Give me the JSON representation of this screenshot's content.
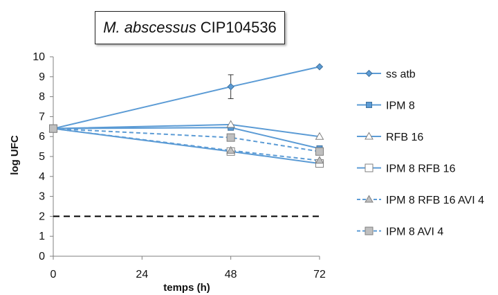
{
  "chart_data": {
    "type": "line",
    "title": {
      "species": "M. abscessus",
      "strain": "CIP104536"
    },
    "xlabel": "temps (h)",
    "ylabel": "log UFC",
    "x": [
      0,
      48,
      72
    ],
    "x_ticks": [
      "0",
      "24",
      "48",
      "72"
    ],
    "xlim": [
      0,
      72
    ],
    "y_ticks": [
      "0",
      "1",
      "2",
      "3",
      "4",
      "5",
      "6",
      "7",
      "8",
      "9",
      "10"
    ],
    "ylim": [
      0,
      10
    ],
    "grid": false,
    "legend_position": "right",
    "threshold": {
      "y": 2,
      "style": "dashed",
      "color": "#000000"
    },
    "series": [
      {
        "name": "ss atb",
        "values": [
          6.4,
          8.5,
          9.5
        ],
        "marker": "diamond",
        "dashed": false,
        "error": [
          0,
          0.6,
          0
        ]
      },
      {
        "name": "IPM 8",
        "values": [
          6.4,
          6.45,
          5.4
        ],
        "marker": "square-small",
        "dashed": false,
        "error": [
          0,
          0,
          0
        ]
      },
      {
        "name": "RFB 16",
        "values": [
          6.4,
          6.6,
          6.0
        ],
        "marker": "triangle",
        "dashed": false,
        "error": [
          0,
          0,
          0
        ]
      },
      {
        "name": "IPM 8 RFB 16",
        "values": [
          6.4,
          5.25,
          4.65
        ],
        "marker": "square-large",
        "dashed": false,
        "error": [
          0,
          0,
          0
        ]
      },
      {
        "name": "IPM 8 RFB 16 AVI 4",
        "values": [
          6.4,
          5.3,
          4.8
        ],
        "marker": "triangle-gray",
        "dashed": true,
        "error": [
          0,
          0,
          0
        ]
      },
      {
        "name": "IPM 8 AVI 4",
        "values": [
          6.4,
          5.95,
          5.25
        ],
        "marker": "square-gray",
        "dashed": true,
        "error": [
          0,
          0,
          0
        ]
      }
    ],
    "colors": {
      "series_line": "#5b9bd5",
      "axis": "#7f7f7f",
      "marker_gray": "#bfbfbf",
      "threshold": "#000000"
    }
  }
}
